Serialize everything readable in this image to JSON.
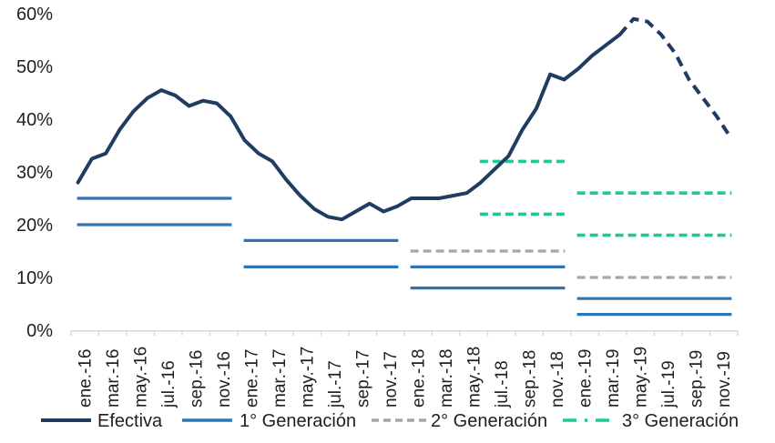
{
  "chart_data": {
    "type": "line",
    "title": "",
    "xlabel": "",
    "ylabel": "",
    "ylim": [
      0,
      60
    ],
    "grid": false,
    "legend_position": "bottom",
    "axis_color": "#d9d9d9",
    "text_color": "#1f1f1f",
    "y_tick_labels": [
      "0%",
      "10%",
      "20%",
      "30%",
      "40%",
      "50%",
      "60%"
    ],
    "y_tick_values": [
      0,
      10,
      20,
      30,
      40,
      50,
      60
    ],
    "x_tick_labels": [
      "ene.-16",
      "mar.-16",
      "may.-16",
      "jul.-16",
      "sep.-16",
      "nov.-16",
      "ene.-17",
      "mar.-17",
      "may.-17",
      "jul.-17",
      "sep.-17",
      "nov.-17",
      "ene.-18",
      "mar.-18",
      "may.-18",
      "jul.-18",
      "sep.-18",
      "nov.-18",
      "ene.-19",
      "mar.-19",
      "may.-19",
      "jul.-19",
      "sep.-19",
      "nov.-19"
    ],
    "x_start": "ene.-16",
    "x_step_months": 1,
    "months_total": 48,
    "series": [
      {
        "name": "Efectiva",
        "kind": "line",
        "color": "#1f3c61",
        "stroke_width": 4,
        "solid_until_index": 39,
        "dashed_after": true,
        "values": [
          28,
          32.5,
          33.5,
          38,
          41.5,
          44,
          45.5,
          44.5,
          42.5,
          43.5,
          43,
          40.5,
          36,
          33.5,
          32,
          28.5,
          25.5,
          23,
          21.5,
          21,
          22.5,
          24,
          22.5,
          23.5,
          25,
          25,
          25,
          25.5,
          26,
          28,
          30.5,
          33,
          38,
          42,
          48.5,
          47.5,
          49.5,
          52,
          54,
          56,
          59,
          58.5,
          56,
          52.5,
          47.5,
          44,
          40.5,
          36.5
        ]
      },
      {
        "name": "1° Generación",
        "kind": "segments",
        "style": "solid",
        "color": "#2e75b6",
        "stroke_width": 3.2,
        "segments": [
          {
            "from_month": 0,
            "to_month": 11,
            "value": 25
          },
          {
            "from_month": 0,
            "to_month": 11,
            "value": 20
          },
          {
            "from_month": 12,
            "to_month": 23,
            "value": 17
          },
          {
            "from_month": 12,
            "to_month": 23,
            "value": 12
          },
          {
            "from_month": 24,
            "to_month": 35,
            "value": 12
          },
          {
            "from_month": 24,
            "to_month": 35,
            "value": 8
          },
          {
            "from_month": 36,
            "to_month": 47,
            "value": 6
          },
          {
            "from_month": 36,
            "to_month": 47,
            "value": 3
          }
        ]
      },
      {
        "name": "2° Generación",
        "kind": "segments",
        "style": "dashed",
        "color": "#a6a6a6",
        "stroke_width": 3.2,
        "segments": [
          {
            "from_month": 24,
            "to_month": 35,
            "value": 15
          },
          {
            "from_month": 36,
            "to_month": 47,
            "value": 10
          }
        ]
      },
      {
        "name": "3° Generación",
        "kind": "segments",
        "style": "dashed",
        "color": "#1ec995",
        "stroke_width": 3.6,
        "segments": [
          {
            "from_month": 29,
            "to_month": 35,
            "value": 32
          },
          {
            "from_month": 29,
            "to_month": 35,
            "value": 22
          },
          {
            "from_month": 36,
            "to_month": 47,
            "value": 26
          },
          {
            "from_month": 36,
            "to_month": 47,
            "value": 18
          }
        ]
      }
    ],
    "legend": [
      {
        "label": "Efectiva",
        "color": "#1f3c61",
        "style": "solid"
      },
      {
        "label": "1° Generación",
        "color": "#2e75b6",
        "style": "solid"
      },
      {
        "label": "2° Generación",
        "color": "#a6a6a6",
        "style": "dashed"
      },
      {
        "label": "3° Generación",
        "color": "#1ec995",
        "style": "dashdot"
      }
    ]
  }
}
